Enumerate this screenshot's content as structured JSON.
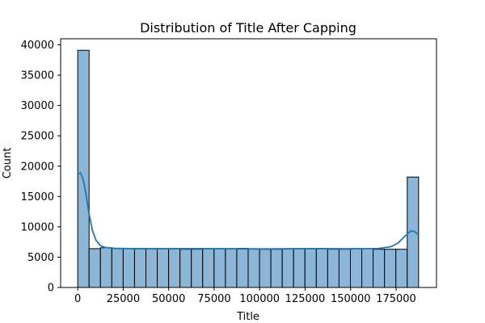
{
  "chart_data": {
    "type": "bar",
    "title": "Distribution of Title After Capping",
    "xlabel": "Title",
    "ylabel": "Count",
    "xlim": [
      -9400,
      197200
    ],
    "ylim": [
      0,
      41000
    ],
    "xticks": [
      0,
      25000,
      50000,
      75000,
      100000,
      125000,
      150000,
      175000
    ],
    "yticks": [
      0,
      5000,
      10000,
      15000,
      20000,
      25000,
      30000,
      35000,
      40000
    ],
    "grid": false,
    "bin_edges": [
      0,
      6245,
      12490,
      18735,
      24980,
      31225,
      37470,
      43715,
      49960,
      56205,
      62450,
      68695,
      74940,
      81185,
      87430,
      93675,
      99920,
      106165,
      112410,
      118655,
      124900,
      131145,
      137390,
      143635,
      149880,
      156125,
      162370,
      168615,
      174860,
      181105,
      187350
    ],
    "counts": [
      39100,
      6400,
      6550,
      6450,
      6400,
      6450,
      6400,
      6400,
      6400,
      6300,
      6300,
      6400,
      6400,
      6400,
      6450,
      6400,
      6300,
      6300,
      6400,
      6400,
      6450,
      6450,
      6300,
      6300,
      6400,
      6400,
      6300,
      6300,
      6300,
      18200
    ],
    "kde": {
      "x": [
        0,
        1500,
        3000,
        4500,
        6000,
        8000,
        10000,
        12500,
        15000,
        20000,
        30000,
        50000,
        75000,
        100000,
        125000,
        150000,
        165000,
        172000,
        176000,
        180000,
        183000,
        185000,
        187350
      ],
      "y": [
        18700,
        18900,
        17800,
        15500,
        12500,
        9500,
        7800,
        6900,
        6600,
        6450,
        6400,
        6400,
        6400,
        6350,
        6400,
        6380,
        6420,
        6700,
        7300,
        8500,
        9300,
        9250,
        8700
      ]
    },
    "colors": {
      "bar_fill": "#8cb6d8",
      "bar_edge": "#000000",
      "kde_line": "#1f77b4"
    }
  }
}
